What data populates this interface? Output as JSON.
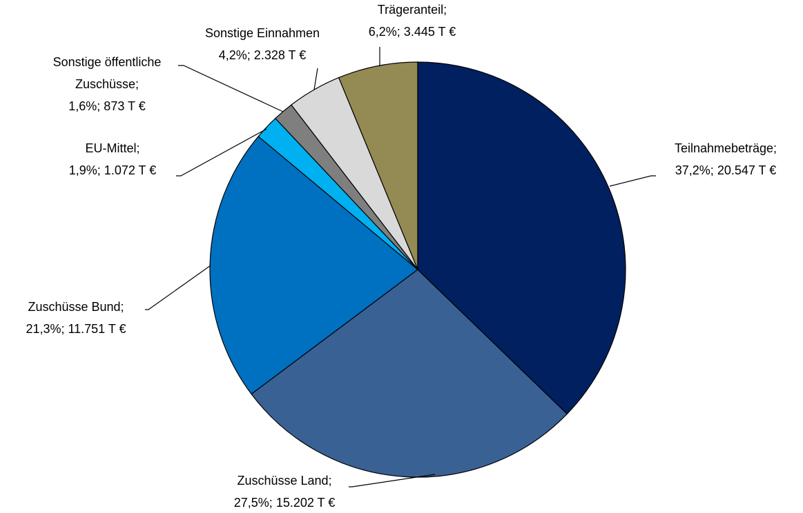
{
  "chart_data": {
    "type": "pie",
    "categories": [
      "Teilnahmebeträge;",
      "Zuschüsse Land;",
      "Zuschüsse Bund;",
      "EU-Mittel;",
      "Sonstige öffentliche Zuschüsse;",
      "Sonstige Einnahmen",
      "Trägeranteil;"
    ],
    "values": [
      37.2,
      27.5,
      21.3,
      1.9,
      1.6,
      4.2,
      6.2
    ],
    "value_labels": [
      "37,2%; 20.547 T €",
      "27,5%; 15.202 T €",
      "21,3%; 11.751 T €",
      "1,9%; 1.072 T €",
      "1,6%; 873 T €",
      "4,2%; 2.328 T €",
      "6,2%; 3.445 T €"
    ],
    "colors": [
      "#002060",
      "#3a6194",
      "#0070c0",
      "#00b0f0",
      "#7f7f7f",
      "#d9d9d9",
      "#948a54"
    ]
  }
}
